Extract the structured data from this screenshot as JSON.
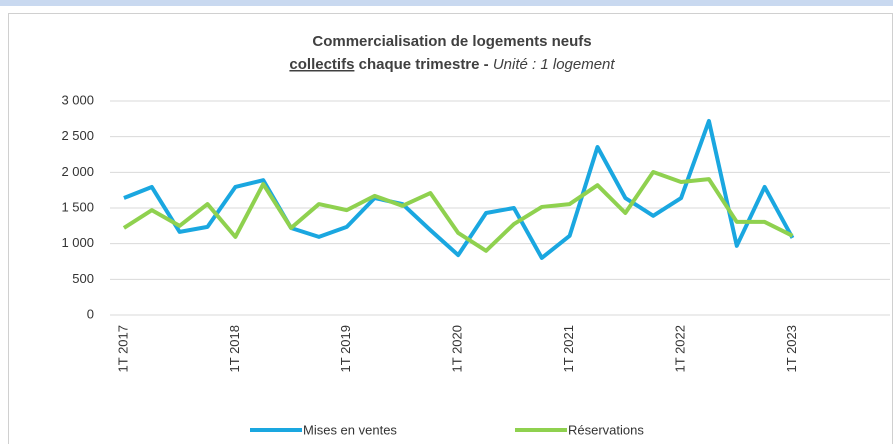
{
  "chart_data": {
    "type": "line",
    "title": {
      "line1": "Commercialisation de logements neufs",
      "underlined": "collectifs",
      "bold": "chaque trimestre -",
      "italic": "Unité : 1 logement"
    },
    "categories": [
      "1T 2017",
      null,
      null,
      null,
      "1T 2018",
      null,
      null,
      null,
      "1T 2019",
      null,
      null,
      null,
      "1T 2020",
      null,
      null,
      null,
      "1T 2021",
      null,
      null,
      null,
      "1T 2022",
      null,
      null,
      null,
      "1T 2023",
      null,
      null,
      null
    ],
    "series": [
      {
        "name": "Mises en ventes",
        "color": "#1aa7e0",
        "values": [
          1640,
          1795,
          1165,
          1235,
          1795,
          1890,
          1220,
          1095,
          1235,
          1640,
          1555,
          1190,
          840,
          1430,
          1500,
          800,
          1110,
          2355,
          1640,
          1390,
          1640,
          2720,
          970,
          1795,
          1080,
          null,
          null,
          null
        ]
      },
      {
        "name": "Réservations",
        "color": "#8fd14f",
        "values": [
          1220,
          1470,
          1250,
          1555,
          1095,
          1835,
          1220,
          1555,
          1470,
          1670,
          1530,
          1710,
          1150,
          900,
          1275,
          1515,
          1555,
          1820,
          1430,
          2005,
          1865,
          1905,
          1305,
          1305,
          1110,
          null,
          null,
          null
        ]
      }
    ],
    "ylim": [
      0,
      3000
    ],
    "yticks": [
      0,
      500,
      {
        "value": 1000,
        "label": "1 000"
      },
      {
        "value": 1500,
        "label": "1 500"
      },
      {
        "value": 2000,
        "label": "2 000"
      },
      {
        "value": 2500,
        "label": "2 500"
      },
      {
        "value": 3000,
        "label": "3 000"
      }
    ],
    "grid": true,
    "legend": "bottom"
  }
}
